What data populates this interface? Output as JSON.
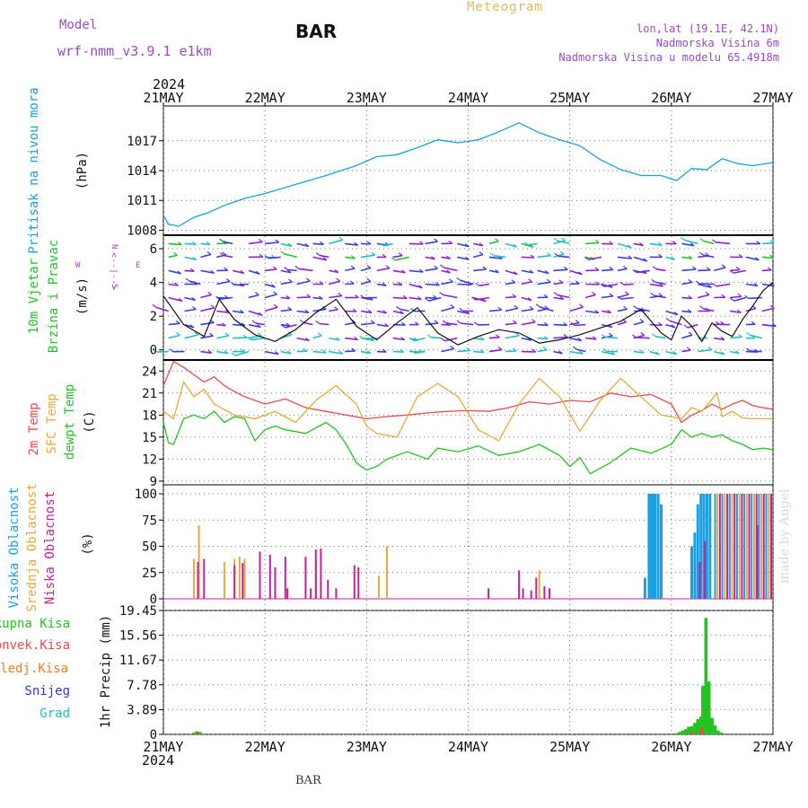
{
  "header": {
    "model_label": "Model",
    "model_name": "wrf-nmm_v3.9.1 e1km",
    "station": "BAR",
    "meteogram": "Meteogram",
    "lonlat": "lon,lat (19.1E, 42.1N)",
    "elevation": "Nadmorska Visina 6m",
    "model_elevation": "Nadmorska Visina u modelu 65.4918m",
    "year_top": "2024",
    "year_bottom": "2024",
    "footer_station": "BAR",
    "watermark": "made by Angel"
  },
  "colors": {
    "pressure": "#1aa0e0",
    "wind_green": "#22c422",
    "temp2m": "#e84a4a",
    "sfc": "#e8a93a",
    "dew": "#22c422",
    "high_cloud": "#1aa0e0",
    "mid_cloud": "#e8a93a",
    "low_cloud": "#c81e9e",
    "label_green": "#22c422",
    "label_red": "#e84a4a",
    "label_orange": "#f08020",
    "label_blue": "#3535e0",
    "label_cyan": "#20c0c0",
    "purple": "#9a4ac8"
  },
  "chart_data": {
    "type": "line",
    "x_ticks": [
      "21MAY",
      "22MAY",
      "23MAY",
      "24MAY",
      "25MAY",
      "26MAY",
      "27MAY"
    ],
    "panels": [
      {
        "id": "pressure",
        "labels": [
          "Pritisak na nivou mora"
        ],
        "unit": "(hPa)",
        "yticks": [
          "1008",
          "1011",
          "1014",
          "1017"
        ],
        "ylim": [
          1007.5,
          1020.5
        ],
        "series": [
          {
            "name": "Pritisak na nivou mora",
            "x": [
              0,
              0.05,
              0.15,
              0.3,
              0.45,
              0.6,
              0.8,
              1.0,
              1.3,
              1.6,
              1.9,
              2.1,
              2.3,
              2.5,
              2.7,
              2.9,
              3.1,
              3.3,
              3.5,
              3.7,
              3.9,
              4.1,
              4.3,
              4.5,
              4.7,
              4.9,
              5.05,
              5.2,
              5.35,
              5.5,
              5.65,
              5.8,
              6.0
            ],
            "y": [
              1009.5,
              1008.6,
              1008.4,
              1009.3,
              1009.8,
              1010.5,
              1011.2,
              1011.7,
              1012.6,
              1013.5,
              1014.5,
              1015.4,
              1015.6,
              1016.3,
              1017.1,
              1016.8,
              1017.1,
              1017.9,
              1018.8,
              1017.8,
              1017.1,
              1016.5,
              1015.1,
              1014.1,
              1013.5,
              1013.5,
              1013.0,
              1014.2,
              1014.1,
              1015.2,
              1014.7,
              1014.5,
              1014.8
            ]
          }
        ]
      },
      {
        "id": "wind",
        "labels": [
          "10m Vjetar",
          "Brzina i Pravac"
        ],
        "unit": "(m/s)",
        "compass": {
          "n": "N",
          "w": "W",
          "e": "E",
          "s": "S",
          "we": "<--|-->"
        },
        "yticks": [
          "0",
          "2",
          "4",
          "6"
        ],
        "ylim": [
          -0.6,
          6.8
        ],
        "series": [
          {
            "name": "10m Vjetar",
            "x": [
              0,
              0.2,
              0.4,
              0.55,
              0.7,
              0.9,
              1.1,
              1.3,
              1.5,
              1.7,
              1.9,
              2.1,
              2.3,
              2.5,
              2.7,
              2.9,
              3.1,
              3.3,
              3.5,
              3.7,
              3.9,
              4.1,
              4.3,
              4.5,
              4.7,
              4.9,
              5.0,
              5.1,
              5.2,
              5.3,
              5.4,
              5.5,
              5.6,
              5.7,
              5.8,
              5.9,
              6.0
            ],
            "y": [
              3.2,
              1.5,
              0.8,
              3.0,
              1.8,
              0.9,
              0.5,
              1.2,
              2.2,
              3.0,
              1.4,
              0.6,
              1.6,
              2.5,
              1.0,
              0.3,
              0.8,
              1.2,
              1.0,
              0.4,
              0.6,
              0.9,
              1.3,
              1.7,
              2.4,
              1.0,
              0.6,
              2.0,
              1.4,
              0.5,
              1.6,
              1.1,
              0.8,
              1.8,
              2.6,
              3.5,
              4.0
            ]
          }
        ]
      },
      {
        "id": "temp",
        "labels": [
          "2m Temp",
          "SFC Temp",
          "dewpt Temp"
        ],
        "unit": "(C)",
        "yticks": [
          "9",
          "12",
          "15",
          "18",
          "21",
          "24"
        ],
        "ylim": [
          8.5,
          25.5
        ],
        "series": [
          {
            "name": "2m Temp",
            "x": [
              0,
              0.1,
              0.2,
              0.3,
              0.4,
              0.5,
              0.6,
              0.7,
              0.8,
              0.9,
              1.0,
              1.2,
              1.4,
              1.6,
              1.8,
              2.0,
              2.2,
              2.4,
              2.6,
              2.8,
              3.0,
              3.2,
              3.4,
              3.6,
              3.8,
              4.0,
              4.2,
              4.4,
              4.6,
              4.8,
              5.0,
              5.1,
              5.2,
              5.3,
              5.4,
              5.5,
              5.6,
              5.7,
              5.8,
              5.9,
              6.0
            ],
            "y": [
              22.0,
              25.3,
              24.5,
              23.5,
              22.5,
              23.2,
              22.0,
              21.2,
              20.5,
              20.0,
              19.5,
              20.2,
              19.0,
              18.5,
              18.0,
              17.5,
              17.8,
              18.0,
              18.3,
              18.5,
              18.6,
              18.5,
              19.0,
              19.8,
              19.5,
              20.0,
              19.8,
              21.0,
              20.5,
              20.8,
              19.5,
              17.0,
              18.0,
              18.6,
              19.5,
              18.8,
              19.5,
              20.0,
              19.3,
              19.0,
              18.8
            ]
          },
          {
            "name": "SFC Temp",
            "x": [
              0,
              0.1,
              0.2,
              0.3,
              0.4,
              0.5,
              0.7,
              0.9,
              1.1,
              1.3,
              1.5,
              1.7,
              1.9,
              2.0,
              2.1,
              2.3,
              2.5,
              2.7,
              2.9,
              3.1,
              3.3,
              3.5,
              3.7,
              3.9,
              4.1,
              4.3,
              4.5,
              4.7,
              4.9,
              5.1,
              5.2,
              5.3,
              5.45,
              5.5,
              5.6,
              5.7,
              5.8,
              6.0
            ],
            "y": [
              18.5,
              17.5,
              22.5,
              20.5,
              21.5,
              19.5,
              18.0,
              17.5,
              18.5,
              17.0,
              20.0,
              22.0,
              19.5,
              16.5,
              15.5,
              15.0,
              20.5,
              22.3,
              20.5,
              16.0,
              14.5,
              19.5,
              23.0,
              20.5,
              15.8,
              20.0,
              23.0,
              20.5,
              18.0,
              17.5,
              19.0,
              18.5,
              21.0,
              17.8,
              18.5,
              17.6,
              17.5,
              17.5
            ]
          },
          {
            "name": "dewpt Temp",
            "x": [
              0,
              0.05,
              0.1,
              0.2,
              0.3,
              0.4,
              0.5,
              0.6,
              0.7,
              0.8,
              0.9,
              1.0,
              1.1,
              1.2,
              1.4,
              1.6,
              1.7,
              1.8,
              1.9,
              2.0,
              2.1,
              2.2,
              2.4,
              2.6,
              2.7,
              2.9,
              3.1,
              3.3,
              3.5,
              3.7,
              3.9,
              4.0,
              4.1,
              4.2,
              4.4,
              4.6,
              4.8,
              5.0,
              5.1,
              5.2,
              5.3,
              5.4,
              5.5,
              5.6,
              5.7,
              5.8,
              5.9,
              6.0
            ],
            "y": [
              17.0,
              14.2,
              14.0,
              17.5,
              18.0,
              17.5,
              18.5,
              17.0,
              17.8,
              17.5,
              14.5,
              16.0,
              16.5,
              16.0,
              15.5,
              17.0,
              16.0,
              14.0,
              11.5,
              10.5,
              11.0,
              12.0,
              13.0,
              12.0,
              13.5,
              13.0,
              13.8,
              12.5,
              13.0,
              14.0,
              12.5,
              11.0,
              12.2,
              10.0,
              11.5,
              13.5,
              12.8,
              14.0,
              16.0,
              15.0,
              15.5,
              15.0,
              15.3,
              14.5,
              14.0,
              13.3,
              13.5,
              13.3
            ]
          }
        ]
      },
      {
        "id": "cloud",
        "labels": [
          "Visoka Oblacnost",
          "Srednja Oblacnost",
          "Niska Oblacnost"
        ],
        "unit": "(%)",
        "type": "bar",
        "yticks": [
          "0",
          "25",
          "50",
          "75",
          "100"
        ],
        "ylim": [
          0,
          100
        ],
        "series": [
          {
            "name": "Visoka Oblacnost",
            "x": [
              4.74,
              4.78,
              4.8,
              4.82,
              4.84,
              4.87,
              4.9,
              5.2,
              5.23,
              5.26,
              5.29,
              5.32,
              5.35,
              5.38
            ],
            "values": [
              20,
              100,
              100,
              100,
              100,
              100,
              90,
              50,
              63,
              90,
              100,
              100,
              100,
              100
            ]
          },
          {
            "name": "Srednja Oblacnost",
            "x": [
              0.3,
              0.35,
              0.6,
              0.7,
              0.75,
              0.8,
              1.5,
              1.55,
              2.12,
              2.2,
              3.7,
              3.8
            ],
            "values": [
              38,
              70,
              35,
              38,
              40,
              38,
              35,
              15,
              22,
              50,
              27,
              10
            ]
          },
          {
            "name": "Niska Oblacnost",
            "x": [
              0.34,
              0.4,
              0.7,
              0.78,
              0.95,
              1.05,
              1.1,
              1.2,
              1.22,
              1.4,
              1.45,
              1.5,
              1.55,
              1.62,
              1.7,
              1.88,
              1.92,
              3.2,
              3.5,
              3.54,
              3.62,
              3.67,
              3.75,
              3.8,
              5.28,
              5.33,
              5.85
            ],
            "values": [
              35,
              38,
              32,
              34,
              45,
              42,
              30,
              40,
              10,
              40,
              10,
              47,
              48,
              18,
              10,
              32,
              30,
              10,
              27,
              10,
              8,
              20,
              12,
              10,
              35,
              55,
              70
            ]
          }
        ],
        "stripe_range": [
          5.43,
          6.0
        ]
      },
      {
        "id": "precip",
        "labels": [
          "Ukupna Kisa",
          "Konvek.Kisa",
          "Zaledj.Kisa",
          "Snijeg",
          "Grad"
        ],
        "ylabel": "1hr Precip (mm)",
        "type": "bar",
        "yticks": [
          "0",
          "3.89",
          "7.78",
          "11.67",
          "15.56",
          "19.45"
        ],
        "ylim": [
          0,
          19.45
        ],
        "series": [
          {
            "name": "Ukupna Kisa",
            "x": [
              0.3,
              0.33,
              0.36,
              5.05,
              5.08,
              5.11,
              5.14,
              5.17,
              5.2,
              5.23,
              5.26,
              5.29,
              5.31,
              5.34,
              5.37,
              5.4,
              5.43,
              5.46,
              5.49
            ],
            "values": [
              0.3,
              0.5,
              0.4,
              0.2,
              0.4,
              0.6,
              0.8,
              1.2,
              1.3,
              1.8,
              2.4,
              2.8,
              7.6,
              18.3,
              8.3,
              2.6,
              1.4,
              0.6,
              0.3
            ]
          },
          {
            "name": "Konvek.Kisa",
            "x": [
              0.33,
              5.2,
              5.3
            ],
            "values": [
              0.3,
              0.5,
              1.0
            ]
          }
        ]
      }
    ]
  }
}
